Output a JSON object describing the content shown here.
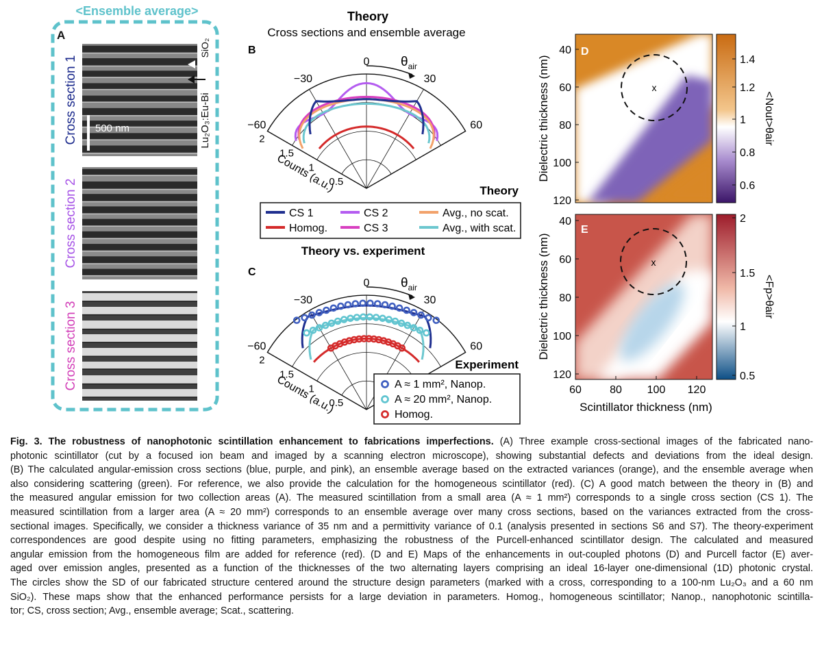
{
  "panel_a": {
    "ensemble_title": "<Ensemble average>",
    "letter": "A",
    "sections": [
      "Cross section 1",
      "Cross section 2",
      "Cross section 3"
    ],
    "section_colors": [
      "#1b2a8c",
      "#a653e6",
      "#d23fb8"
    ],
    "scale_bar": "500 nm",
    "layer_left": "Lu₂O₃:Eu-Bi",
    "layer_right": "SiO₂"
  },
  "panel_b": {
    "letter": "B",
    "title": "Theory",
    "subtitle": "Cross sections and ensemble average",
    "corner_label": "Theory",
    "theta_label": "θair",
    "angle_ticks": [
      "−60",
      "−30",
      "0",
      "30",
      "60"
    ],
    "radial_ticks": [
      "2",
      "1.5",
      "1",
      "0.5"
    ],
    "radial_label": "Counts (a.u.)",
    "legend": [
      {
        "label": "CS 1",
        "color": "#1f2f8f"
      },
      {
        "label": "CS 2",
        "color": "#b45cf0"
      },
      {
        "label": "Avg., no scat.",
        "color": "#f2a26b"
      },
      {
        "label": "Homog.",
        "color": "#d42a2a"
      },
      {
        "label": "CS 3",
        "color": "#d83fc0"
      },
      {
        "label": "Avg., with scat.",
        "color": "#6cc7cf"
      }
    ]
  },
  "panel_c": {
    "letter": "C",
    "title": "Theory vs. experiment",
    "corner_label": "Experiment",
    "theta_label": "θair",
    "angle_ticks": [
      "−60",
      "−30",
      "0",
      "30",
      "60"
    ],
    "radial_ticks": [
      "2",
      "1.5",
      "1",
      "0.5"
    ],
    "radial_label": "Counts (a.u.)",
    "legend": [
      {
        "label": "A ≈ 1 mm², Nanop.",
        "color": "#3f5fc0"
      },
      {
        "label": "A ≈ 20 mm², Nanop.",
        "color": "#5fc4d0"
      },
      {
        "label": "Homog.",
        "color": "#d42a2a"
      }
    ]
  },
  "panel_d": {
    "letter": "D",
    "ylabel": "Dielectric thickness (nm)",
    "yticks": [
      "40",
      "60",
      "80",
      "100",
      "120"
    ],
    "cbar_ticks": [
      "1.4",
      "1.2",
      "1",
      "0.8",
      "0.6"
    ],
    "cbar_label": "<Nout>θair",
    "marker": "x"
  },
  "panel_e": {
    "letter": "E",
    "ylabel": "Dielectric thickness (nm)",
    "xlabel": "Scintillator thickness (nm)",
    "yticks": [
      "40",
      "60",
      "80",
      "100",
      "120"
    ],
    "xticks": [
      "60",
      "80",
      "100",
      "120"
    ],
    "cbar_ticks": [
      "2",
      "1.5",
      "1",
      "0.5"
    ],
    "cbar_label": "<Fp>θair",
    "marker": "x"
  },
  "caption": {
    "title": "Fig. 3. The robustness of nanophotonic scintillation enhancement to fabrications imperfections.",
    "lines": [
      "(A) Three example cross-sectional images of the fabricated nano-",
      "photonic scintillator (cut by a focused ion beam and imaged by a scanning electron microscope), showing substantial defects and deviations from the ideal design.",
      "(B) The calculated angular-emission cross sections (blue, purple, and pink), an ensemble average based on the extracted variances (orange), and the ensemble average when",
      "also considering scattering (green). For reference, we also provide the calculation for the homogeneous scintillator (red). (C) A good match between the theory in (B) and",
      "the measured angular emission for two collection areas (A). The measured scintillation from a small area (A ≈ 1 mm²) corresponds to a single cross section (CS 1). The",
      "measured scintillation from a larger area (A ≈ 20 mm²) corresponds to an ensemble average over many cross sections, based on the variances extracted from the cross-",
      "sectional images. Specifically, we consider a thickness variance of 35 nm and a permittivity variance of 0.1 (analysis presented in sections S6 and S7). The theory-experiment",
      "correspondences are good despite using no fitting parameters, emphasizing the robustness of the Purcell-enhanced scintillator design. The calculated and measured",
      "angular emission from the homogeneous film are added for reference (red). (D and E) Maps of the enhancements in out-coupled photons (D) and Purcell factor (E) aver-",
      "aged over emission angles, presented as a function of the thicknesses of the two alternating layers comprising an ideal 16-layer one-dimensional (1D) photonic crystal.",
      "The circles show the SD of our fabricated structure centered around the structure design parameters (marked with a cross, corresponding to a 100-nm Lu₂O₃ and a 60 nm",
      "SiO₂). These maps show that the enhanced performance persists for a large deviation in parameters. Homog., homogeneous scintillator; Nanop., nanophotonic scintilla-",
      "tor; CS, cross section; Avg., ensemble average; Scat., scattering."
    ]
  }
}
